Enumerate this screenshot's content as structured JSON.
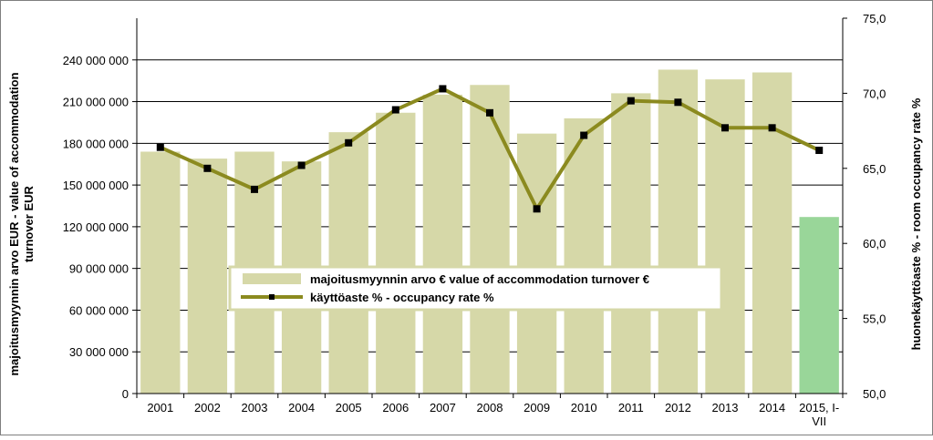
{
  "chart_data": {
    "type": "bar",
    "categories": [
      "2001",
      "2002",
      "2003",
      "2004",
      "2005",
      "2006",
      "2007",
      "2008",
      "2009",
      "2010",
      "2011",
      "2012",
      "2013",
      "2014",
      "2015, I-VII"
    ],
    "categories_lines": [
      [
        "2001"
      ],
      [
        "2002"
      ],
      [
        "2003"
      ],
      [
        "2004"
      ],
      [
        "2005"
      ],
      [
        "2006"
      ],
      [
        "2007"
      ],
      [
        "2008"
      ],
      [
        "2009"
      ],
      [
        "2010"
      ],
      [
        "2011"
      ],
      [
        "2012"
      ],
      [
        "2013"
      ],
      [
        "2014"
      ],
      [
        "2015, I-",
        "VII"
      ]
    ],
    "series": [
      {
        "name": "majoitusmyynnin arvo € value of accommodation turnover €",
        "type": "bar",
        "axis": "left",
        "values": [
          174000000,
          169000000,
          174000000,
          167000000,
          188000000,
          202000000,
          215000000,
          222000000,
          187000000,
          198000000,
          216000000,
          233000000,
          226000000,
          231000000,
          127000000
        ],
        "color": "#d6d8a8",
        "highlight_color": "#99d699",
        "highlight_index": 14
      },
      {
        "name": "käyttöaste % -  occupancy rate %",
        "type": "line",
        "axis": "right",
        "values": [
          66.4,
          65.0,
          63.6,
          65.2,
          66.7,
          68.9,
          70.3,
          68.7,
          62.3,
          67.2,
          69.5,
          69.4,
          67.7,
          67.7,
          66.2
        ],
        "color": "#8b8a1f",
        "marker_color": "#000000"
      }
    ],
    "ylabel": "majoitusmyynnin arvo EUR - value of accommodation turnover EUR",
    "ylabel_lines": [
      "majoitusmyynnin arvo EUR - value of accommodation",
      "turnover EUR"
    ],
    "ylim": [
      0,
      270000000
    ],
    "yticks": [
      0,
      30000000,
      60000000,
      90000000,
      120000000,
      150000000,
      180000000,
      210000000,
      240000000
    ],
    "ytick_labels": [
      "0",
      "30 000 000",
      "60 000 000",
      "90 000 000",
      "120 000 000",
      "150 000 000",
      "180 000 000",
      "210 000 000",
      "240 000 000"
    ],
    "y2label": "huonekäyttöaste % - room occupancy rate %",
    "y2lim": [
      50,
      75
    ],
    "y2ticks": [
      50,
      55,
      60,
      65,
      70,
      75
    ],
    "y2tick_labels": [
      "50,0",
      "55,0",
      "60,0",
      "65,0",
      "70,0",
      "75,0"
    ],
    "grid": true,
    "legend": "center",
    "plot_background": "#ffffff"
  }
}
